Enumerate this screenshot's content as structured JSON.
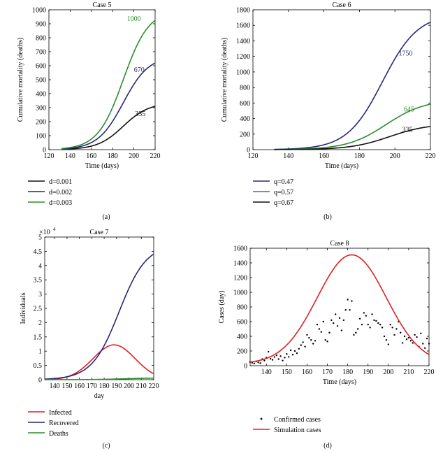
{
  "chart_data": [
    {
      "panel": "a",
      "caption": "(a)",
      "type": "line",
      "title": "Case 5",
      "xlabel": "Time (days)",
      "ylabel": "Cumulative mortality (deaths)",
      "xlim": [
        120,
        220
      ],
      "ylim": [
        0,
        1000
      ],
      "x_ticks": [
        "120",
        "140",
        "160",
        "180",
        "200",
        "220"
      ],
      "y_ticks": [
        "0",
        "100",
        "200",
        "300",
        "400",
        "500",
        "600",
        "700",
        "800",
        "900",
        "1000"
      ],
      "curve_start": 132,
      "series": [
        {
          "name": "d=0.001",
          "color": "#111111",
          "final": 335,
          "mid": 190,
          "scale": 12
        },
        {
          "name": "d=0.002",
          "color": "#27277a",
          "final": 670,
          "mid": 190,
          "scale": 12
        },
        {
          "name": "d=0.003",
          "color": "#2e8b2e",
          "final": 1000,
          "mid": 190,
          "scale": 12
        }
      ],
      "annotations": [
        {
          "text": "1000",
          "x": 200,
          "y": 920,
          "color": "#2e8b2e"
        },
        {
          "text": "670",
          "x": 205,
          "y": 555,
          "color": "#27277a"
        },
        {
          "text": "335",
          "x": 206,
          "y": 240,
          "color": "#111111"
        }
      ]
    },
    {
      "panel": "b",
      "caption": "(b)",
      "type": "line",
      "title": "Case 6",
      "xlabel": "Time (days)",
      "ylabel": "Cumulative mortality (deaths)",
      "xlim": [
        120,
        220
      ],
      "ylim": [
        0,
        1800
      ],
      "x_ticks": [
        "120",
        "140",
        "160",
        "180",
        "200",
        "220"
      ],
      "y_ticks": [
        "0",
        "200",
        "400",
        "600",
        "800",
        "1000",
        "1200",
        "1400",
        "1600",
        "1800"
      ],
      "curve_start": 132,
      "series": [
        {
          "name": "q=0.47",
          "color": "#27277a",
          "final": 1750,
          "mid": 193,
          "scale": 10
        },
        {
          "name": "q=0.57",
          "color": "#2e8b2e",
          "final": 645,
          "mid": 195,
          "scale": 11
        },
        {
          "name": "q=0.67",
          "color": "#111111",
          "final": 335,
          "mid": 197,
          "scale": 11
        }
      ],
      "annotations": [
        {
          "text": "1750",
          "x": 206,
          "y": 1210,
          "color": "#27277a"
        },
        {
          "text": "645",
          "x": 208,
          "y": 490,
          "color": "#2e8b2e"
        },
        {
          "text": "335",
          "x": 207,
          "y": 230,
          "color": "#111111"
        }
      ]
    },
    {
      "panel": "c",
      "caption": "(c)",
      "type": "line",
      "title": "Case 7",
      "xlabel": "day",
      "ylabel": "Individuals",
      "y_multiplier": "×10",
      "y_multiplier_exp": "4",
      "xlim": [
        132,
        220
      ],
      "ylim": [
        0,
        5
      ],
      "x_ticks": [
        "140",
        "150",
        "160",
        "170",
        "180",
        "190",
        "200",
        "210",
        "220"
      ],
      "y_ticks": [
        "0",
        "0.5",
        "1",
        "1.5",
        "2",
        "2.5",
        "3",
        "3.5",
        "4",
        "4.5",
        "5"
      ],
      "series": [
        {
          "name": "Infected",
          "color": "#e02020",
          "peak": 1.22,
          "peak_day": 188,
          "width": 17
        },
        {
          "name": "Recovered",
          "color": "#27277a",
          "final": 4.75,
          "mid": 192,
          "scale": 11
        },
        {
          "name": "Deaths",
          "color": "#2e8b2e",
          "final": 0.06,
          "mid": 195,
          "scale": 12
        }
      ]
    },
    {
      "panel": "d",
      "caption": "(d)",
      "type": "line",
      "title": "Case 8",
      "xlabel": "Time (days)",
      "ylabel": "Cases (day)",
      "xlim": [
        132,
        220
      ],
      "ylim": [
        0,
        1600
      ],
      "x_ticks": [
        "140",
        "150",
        "160",
        "170",
        "180",
        "190",
        "200",
        "210",
        "220"
      ],
      "y_ticks": [
        "0",
        "200",
        "400",
        "600",
        "800",
        "1000",
        "1200",
        "1400",
        "1600"
      ],
      "series": [
        {
          "name": "Confirmed cases",
          "color": "#000000",
          "kind": "scatter",
          "x": [
            132,
            133,
            134,
            135,
            136,
            137,
            138,
            139,
            140,
            141,
            142,
            143,
            144,
            145,
            146,
            147,
            148,
            149,
            150,
            151,
            152,
            153,
            154,
            155,
            156,
            157,
            158,
            159,
            160,
            161,
            162,
            163,
            164,
            165,
            166,
            167,
            168,
            169,
            170,
            171,
            172,
            173,
            174,
            175,
            176,
            177,
            178,
            179,
            180,
            181,
            182,
            183,
            184,
            185,
            186,
            187,
            188,
            189,
            190,
            191,
            192,
            193,
            194,
            195,
            196,
            197,
            198,
            199,
            200,
            201,
            202,
            203,
            204,
            205,
            206,
            207,
            208,
            209,
            210,
            211,
            212,
            213,
            214,
            215,
            216,
            217,
            218,
            219,
            220
          ],
          "y": [
            50,
            40,
            30,
            60,
            45,
            35,
            90,
            70,
            110,
            190,
            95,
            80,
            120,
            140,
            90,
            130,
            70,
            110,
            160,
            120,
            210,
            150,
            200,
            170,
            230,
            280,
            320,
            260,
            420,
            380,
            350,
            300,
            340,
            560,
            500,
            460,
            600,
            350,
            330,
            450,
            620,
            580,
            700,
            540,
            650,
            480,
            620,
            760,
            900,
            760,
            880,
            420,
            450,
            500,
            640,
            560,
            720,
            680,
            560,
            520,
            700,
            620,
            610,
            580,
            560,
            520,
            400,
            350,
            290,
            560,
            520,
            420,
            500,
            600,
            450,
            310,
            400,
            360,
            380,
            340,
            310,
            420,
            390,
            260,
            440,
            300,
            240,
            370,
            300
          ]
        },
        {
          "name": "Simulation cases",
          "color": "#e02020",
          "kind": "line",
          "peak": 1510,
          "peak_day": 182,
          "width": 17,
          "base": 30
        }
      ]
    }
  ]
}
